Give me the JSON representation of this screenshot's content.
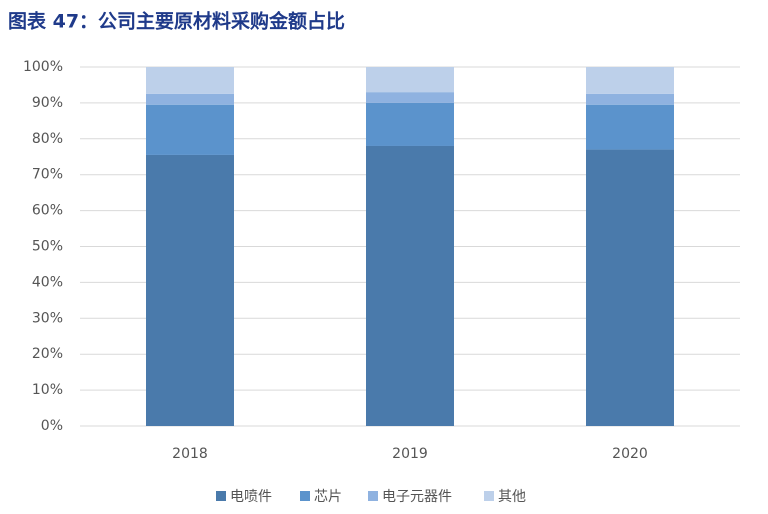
{
  "chart_data": {
    "type": "stacked-bar",
    "title": "图表 47：公司主要原材料采购金额占比",
    "categories": [
      "2018",
      "2019",
      "2020"
    ],
    "series": [
      {
        "name": "电喷件",
        "color": "#4a7aab",
        "values": [
          75.5,
          78,
          77
        ]
      },
      {
        "name": "芯片",
        "color": "#5b93cc",
        "values": [
          14,
          12,
          12.5
        ]
      },
      {
        "name": "电子元器件",
        "color": "#8fb2e0",
        "values": [
          3,
          3,
          3
        ]
      },
      {
        "name": "其他",
        "color": "#bdd0ea",
        "values": [
          7.5,
          7,
          7.5
        ]
      }
    ],
    "ylim": [
      0,
      100
    ],
    "yticks": [
      {
        "value": 0,
        "label": "0%"
      },
      {
        "value": 10,
        "label": "10%"
      },
      {
        "value": 20,
        "label": "20%"
      },
      {
        "value": 30,
        "label": "30%"
      },
      {
        "value": 40,
        "label": "40%"
      },
      {
        "value": 50,
        "label": "50%"
      },
      {
        "value": 60,
        "label": "60%"
      },
      {
        "value": 70,
        "label": "70%"
      },
      {
        "value": 80,
        "label": "80%"
      },
      {
        "value": 90,
        "label": "90%"
      },
      {
        "value": 100,
        "label": "100%"
      }
    ],
    "grid": true,
    "legend": "bottom"
  }
}
